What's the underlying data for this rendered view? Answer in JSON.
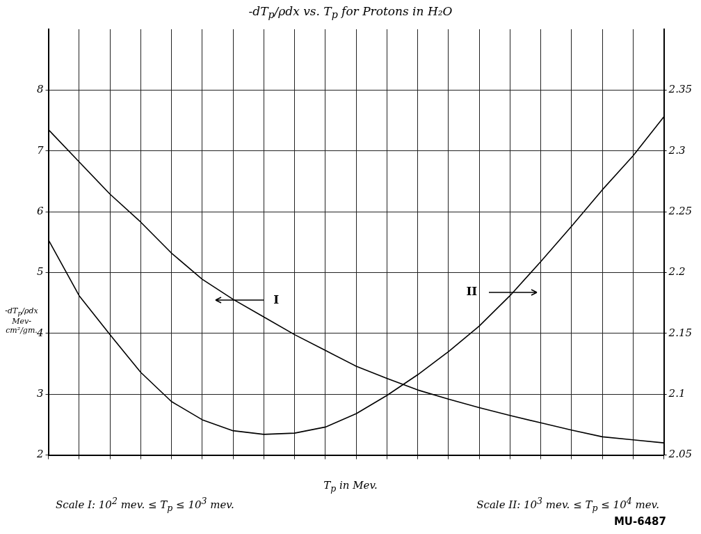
{
  "chart_data": {
    "type": "line",
    "title": "-dT$_{p}$/ρdx vs. T$_{p}$ for Protons in H₂O",
    "xlabel": "T$_{p}$ in Mev.",
    "ylabel": "-dT$_{p}$/ρdx Mev-cm²/gm.",
    "annotations": [
      "Scale I: 10$^{2}$ mev. ≤ T$_{p}$ ≤ 10$^{3}$ mev.",
      "Scale II: 10$^{3}$ mev. ≤ T$_{p}$ ≤ 10$^{4}$ mev.",
      "MU-6487"
    ],
    "grid": true,
    "marker": "none",
    "categories": [
      null,
      null,
      null,
      null,
      null,
      null,
      null,
      null,
      null,
      null,
      null,
      null,
      null,
      null,
      null,
      null,
      null,
      null,
      null,
      null,
      null
    ],
    "ylim": [
      2,
      9
    ],
    "yticks": [
      2,
      3,
      4,
      5,
      6,
      7,
      8
    ],
    "y2lim": [
      2.05,
      2.4
    ],
    "y2ticks": [
      2.05,
      2.1,
      2.15,
      2.2,
      2.25,
      2.3,
      2.35
    ],
    "series": [
      {
        "name": "I",
        "color": "#000000",
        "values": [
          7.35,
          6.82,
          6.29,
          5.83,
          5.32,
          4.89,
          4.56,
          4.27,
          3.98,
          3.72,
          3.46,
          3.26,
          3.07,
          2.92,
          2.78,
          2.65,
          2.53,
          2.41,
          2.3,
          2.25,
          2.2
        ]
      },
      {
        "name": "II",
        "color": "#000000",
        "axis": "y2",
        "values": [
          2.227,
          2.181,
          2.149,
          2.118,
          2.094,
          2.079,
          2.07,
          2.067,
          2.068,
          2.073,
          2.084,
          2.099,
          2.116,
          2.135,
          2.156,
          2.181,
          2.209,
          2.238,
          2.268,
          2.296,
          2.328
        ]
      }
    ]
  }
}
